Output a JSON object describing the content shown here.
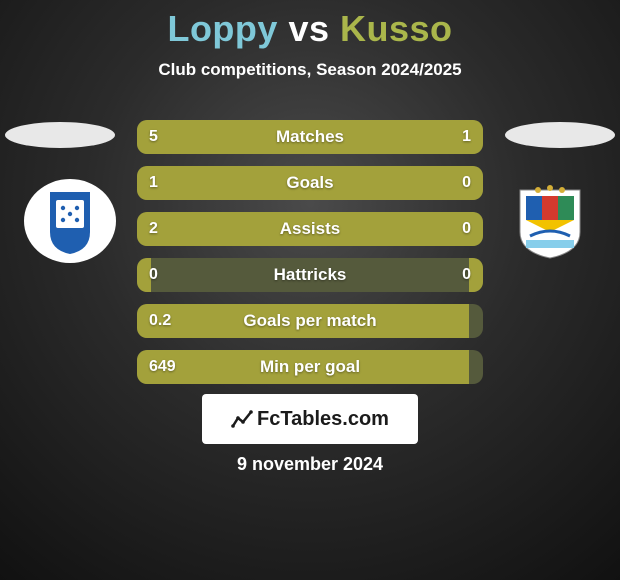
{
  "background": {
    "radial_inner": "#4a4a4a",
    "radial_mid": "#2b2b2b",
    "radial_outer": "#111111"
  },
  "accent_color": "#a3a13b",
  "accent_track": "#555a3c",
  "text_color": "#ffffff",
  "player1": {
    "name": "Loppy",
    "color": "#7fc8d8"
  },
  "vs": {
    "text": "vs",
    "color": "#ffffff"
  },
  "player2": {
    "name": "Kusso",
    "color": "#aab64b"
  },
  "subtitle": "Club competitions, Season 2024/2025",
  "ellipse_color": "#e8e8e8",
  "club_left": {
    "shape": "shield",
    "bg": "#ffffff",
    "inner": "#1f5fb0",
    "accent": "#1f5fb0"
  },
  "club_right": {
    "shape": "shield",
    "bg": "#ffffff",
    "stripes": [
      "#1f5fb0",
      "#d43a2e",
      "#2e8b57"
    ],
    "chevron": "#f2c200",
    "bridge": "#87ceeb"
  },
  "bars": {
    "track_color": "#555a3c",
    "fill_color": "#a3a13b",
    "label_color": "#ffffff",
    "rows": [
      {
        "label": "Matches",
        "left": "5",
        "right": "1",
        "left_pct": 80,
        "right_pct": 20
      },
      {
        "label": "Goals",
        "left": "1",
        "right": "0",
        "left_pct": 96,
        "right_pct": 4
      },
      {
        "label": "Assists",
        "left": "2",
        "right": "0",
        "left_pct": 96,
        "right_pct": 4
      },
      {
        "label": "Hattricks",
        "left": "0",
        "right": "0",
        "left_pct": 4,
        "right_pct": 4
      },
      {
        "label": "Goals per match",
        "left": "0.2",
        "right": "",
        "left_pct": 96,
        "right_pct": 0
      },
      {
        "label": "Min per goal",
        "left": "649",
        "right": "",
        "left_pct": 96,
        "right_pct": 0
      }
    ]
  },
  "brand": "FcTables.com",
  "date": "9 november 2024"
}
